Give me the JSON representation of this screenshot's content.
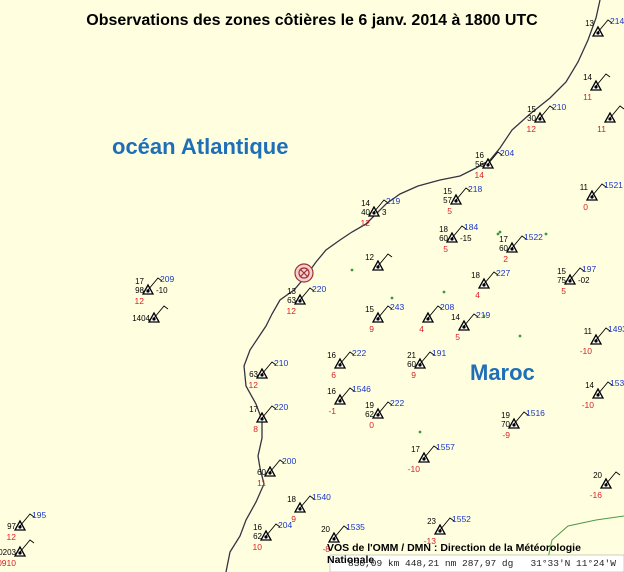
{
  "title": "Observations des zones côtières le 6 janv. 2014 à 1800 UTC",
  "labels": {
    "ocean": "océan Atlantique",
    "country": "Maroc"
  },
  "credit": "VOS de l'OMM / DMN : Direction de la Météorologie Nationale",
  "status_bar": {
    "left": "830,09 km 448,21 nm 287,97 dg",
    "right": "31°33'N 11°24'W"
  },
  "colors": {
    "background": "#ffffe0",
    "coastline": "#334",
    "station_id": "#1a35c8",
    "pressure_tendency": "#d81f26",
    "region_label": "#1e6fb8"
  },
  "stations": [
    {
      "id": "214",
      "temp": "13",
      "dew": "",
      "press": "",
      "tend": ""
    },
    {
      "id": "",
      "temp": "14",
      "dew": "",
      "press": "",
      "tend": "11"
    },
    {
      "id": "210",
      "temp": "15",
      "dew": "",
      "press": "30",
      "tend": "12"
    },
    {
      "id": "",
      "temp": "",
      "dew": "",
      "press": "",
      "tend": "11"
    },
    {
      "id": "204",
      "temp": "16",
      "dew": "",
      "press": "56",
      "tend": "14"
    },
    {
      "id": "1521",
      "temp": "11",
      "dew": "",
      "press": "",
      "tend": "0"
    },
    {
      "id": "219",
      "temp": "14",
      "dew": "3",
      "press": "40",
      "tend": "12"
    },
    {
      "id": "218",
      "temp": "15",
      "dew": "",
      "press": "57",
      "tend": "5"
    },
    {
      "id": "184",
      "temp": "18",
      "dew": "-15",
      "press": "60",
      "tend": "5"
    },
    {
      "id": "1522",
      "temp": "17",
      "dew": "",
      "press": "60",
      "tend": "2"
    },
    {
      "id": "209",
      "temp": "17",
      "dew": "-10",
      "press": "98",
      "tend": "12"
    },
    {
      "id": "",
      "temp": "12",
      "dew": "",
      "press": "",
      "tend": ""
    },
    {
      "id": "227",
      "temp": "18",
      "dew": "",
      "press": "",
      "tend": "4"
    },
    {
      "id": "197",
      "temp": "15",
      "dew": "-02",
      "press": "75",
      "tend": "5"
    },
    {
      "id": "220",
      "temp": "13",
      "dew": "",
      "press": "63",
      "tend": "12"
    },
    {
      "id": "243",
      "temp": "15",
      "dew": "",
      "press": "",
      "tend": "9"
    },
    {
      "id": "208",
      "temp": "",
      "dew": "",
      "press": "",
      "tend": "4"
    },
    {
      "id": "219",
      "temp": "14",
      "dew": "",
      "press": "",
      "tend": "5"
    },
    {
      "id": "1493",
      "temp": "11",
      "dew": "",
      "press": "",
      "tend": "-10"
    },
    {
      "id": "",
      "temp": "",
      "dew": "",
      "press": "1404",
      "tend": ""
    },
    {
      "id": "210",
      "temp": "",
      "dew": "",
      "press": "63",
      "tend": "12"
    },
    {
      "id": "222",
      "temp": "16",
      "dew": "",
      "press": "",
      "tend": "6"
    },
    {
      "id": "191",
      "temp": "21",
      "dew": "",
      "press": "60",
      "tend": "9"
    },
    {
      "id": "1538",
      "temp": "14",
      "dew": "",
      "press": "",
      "tend": "-10"
    },
    {
      "id": "220",
      "temp": "17",
      "dew": "",
      "press": "",
      "tend": "8"
    },
    {
      "id": "1546",
      "temp": "16",
      "dew": "",
      "press": "",
      "tend": "-1"
    },
    {
      "id": "222",
      "temp": "19",
      "dew": "",
      "press": "62",
      "tend": "0"
    },
    {
      "id": "1516",
      "temp": "19",
      "dew": "",
      "press": "70",
      "tend": "-9"
    },
    {
      "id": "1557",
      "temp": "17",
      "dew": "",
      "press": "",
      "tend": "-10"
    },
    {
      "id": "200",
      "temp": "",
      "dew": "",
      "press": "60",
      "tend": "11"
    },
    {
      "id": "",
      "temp": "20",
      "dew": "",
      "press": "",
      "tend": "-16"
    },
    {
      "id": "1540",
      "temp": "18",
      "dew": "",
      "press": "",
      "tend": "9"
    },
    {
      "id": "195",
      "temp": "",
      "dew": "",
      "press": "97",
      "tend": "12"
    },
    {
      "id": "",
      "temp": "",
      "dew": "",
      "press": "0203",
      "tend": "0910"
    },
    {
      "id": "204",
      "temp": "16",
      "dew": "",
      "press": "62",
      "tend": "10"
    },
    {
      "id": "1535",
      "temp": "20",
      "dew": "",
      "press": "",
      "tend": "-8"
    },
    {
      "id": "1552",
      "temp": "23",
      "dew": "",
      "press": "",
      "tend": "-13"
    }
  ]
}
